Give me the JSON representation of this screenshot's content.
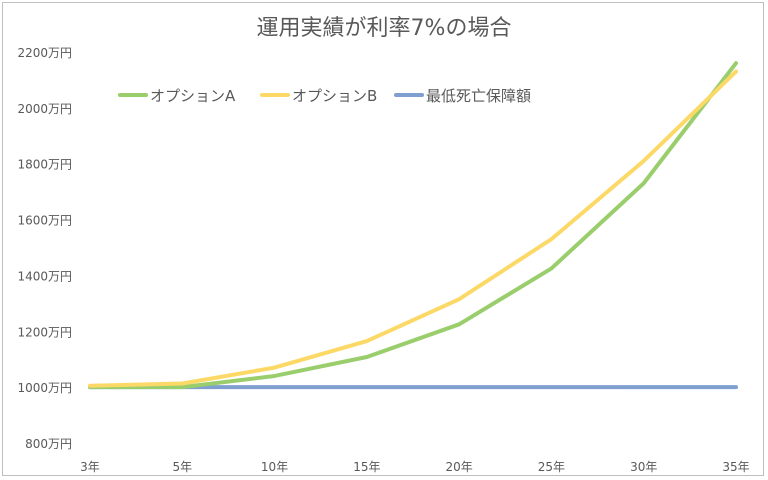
{
  "chart_data": {
    "type": "line",
    "title": "運用実績が利率7%の場合",
    "xlabel": "",
    "ylabel": "",
    "categories": [
      "3年",
      "5年",
      "10年",
      "15年",
      "20年",
      "25年",
      "30年",
      "35年"
    ],
    "y_ticks": [
      "800万円",
      "1000万円",
      "1200万円",
      "1400万円",
      "1600万円",
      "1800万円",
      "2000万円",
      "2200万円"
    ],
    "y_tick_values": [
      800,
      1000,
      1200,
      1400,
      1600,
      1800,
      2000,
      2200
    ],
    "ylim": [
      800,
      2200
    ],
    "grid": false,
    "legend_position": "top",
    "series": [
      {
        "name": "オプションA",
        "color": "#9acd6b",
        "values": [
          1000,
          1000,
          1040,
          1108,
          1225,
          1425,
          1730,
          2160
        ]
      },
      {
        "name": "オプションB",
        "color": "#fcd966",
        "values": [
          1005,
          1013,
          1070,
          1165,
          1315,
          1530,
          1810,
          2130
        ]
      },
      {
        "name": "最低死亡保障額",
        "color": "#7f9fd1",
        "values": [
          1000,
          1000,
          1000,
          1000,
          1000,
          1000,
          1000,
          1000
        ]
      }
    ]
  }
}
